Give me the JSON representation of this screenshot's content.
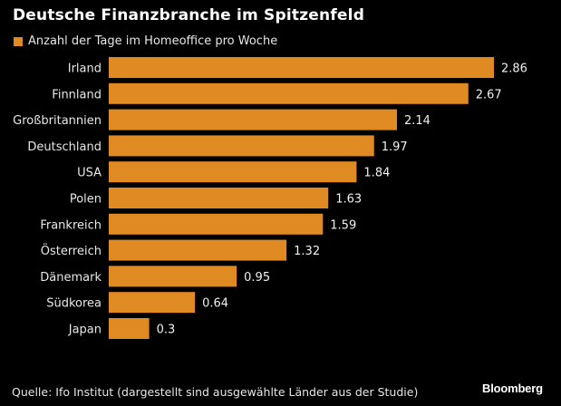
{
  "chart_data": {
    "type": "bar",
    "orientation": "horizontal",
    "title": "Deutsche Finanzbranche im Spitzenfeld",
    "legend": "Anzahl der Tage im Homeoffice pro Woche",
    "legend_position": "top-left",
    "categories": [
      "Irland",
      "Finnland",
      "Großbritannien",
      "Deutschland",
      "USA",
      "Polen",
      "Frankreich",
      "Österreich",
      "Dänemark",
      "Südkorea",
      "Japan"
    ],
    "values": [
      2.86,
      2.67,
      2.14,
      1.97,
      1.84,
      1.63,
      1.59,
      1.32,
      0.95,
      0.64,
      0.3
    ],
    "value_labels": [
      "2.86",
      "2.67",
      "2.14",
      "1.97",
      "1.84",
      "1.63",
      "1.59",
      "1.32",
      "0.95",
      "0.64",
      "0.3"
    ],
    "xlim": [
      0,
      3.0
    ],
    "grid": false,
    "xlabel": "",
    "ylabel": "",
    "bar_color": "#e08a24",
    "source": "Quelle: Ifo Institut (dargestellt sind ausgewählte Länder aus der Studie)",
    "brand": "Bloomberg"
  }
}
